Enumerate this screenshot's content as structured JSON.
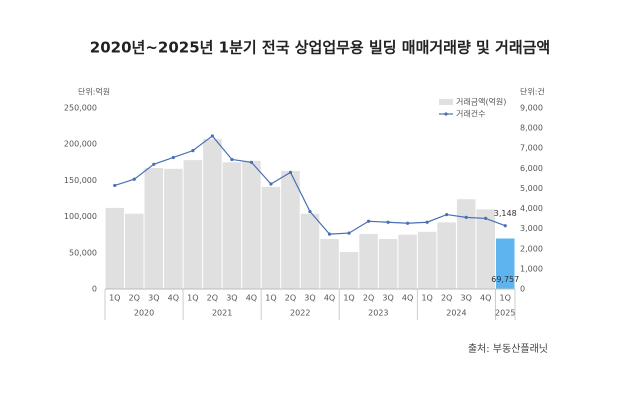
{
  "chart_data": {
    "type": "bar_line",
    "title": "2020년~2025년 1분기 전국 상업업무용 빌딩 매매거래량 및 거래금액",
    "y_unit": "단위:억원",
    "y2_unit": "단위:건",
    "source": "출처: 부동산플래닛",
    "categories": [
      {
        "quarter": "1Q",
        "year": "2020"
      },
      {
        "quarter": "2Q",
        "year": "2020"
      },
      {
        "quarter": "3Q",
        "year": "2020"
      },
      {
        "quarter": "4Q",
        "year": "2020"
      },
      {
        "quarter": "1Q",
        "year": "2021"
      },
      {
        "quarter": "2Q",
        "year": "2021"
      },
      {
        "quarter": "3Q",
        "year": "2021"
      },
      {
        "quarter": "4Q",
        "year": "2021"
      },
      {
        "quarter": "1Q",
        "year": "2022"
      },
      {
        "quarter": "2Q",
        "year": "2022"
      },
      {
        "quarter": "3Q",
        "year": "2022"
      },
      {
        "quarter": "4Q",
        "year": "2022"
      },
      {
        "quarter": "1Q",
        "year": "2023"
      },
      {
        "quarter": "2Q",
        "year": "2023"
      },
      {
        "quarter": "3Q",
        "year": "2023"
      },
      {
        "quarter": "4Q",
        "year": "2023"
      },
      {
        "quarter": "1Q",
        "year": "2024"
      },
      {
        "quarter": "2Q",
        "year": "2024"
      },
      {
        "quarter": "3Q",
        "year": "2024"
      },
      {
        "quarter": "4Q",
        "year": "2024"
      },
      {
        "quarter": "1Q",
        "year": "2025"
      }
    ],
    "series": [
      {
        "name": "거래금액(억원)",
        "type": "bar",
        "color": "#e0e0e0",
        "highlight_color": "#5db4ee",
        "values": [
          112000,
          104000,
          167000,
          166000,
          178000,
          207000,
          175000,
          177000,
          141000,
          163000,
          104000,
          69000,
          51000,
          76000,
          69000,
          75000,
          79000,
          92000,
          124000,
          110000,
          69757
        ],
        "value_labels": [
          null,
          null,
          null,
          null,
          null,
          null,
          null,
          null,
          null,
          null,
          null,
          null,
          null,
          null,
          null,
          null,
          null,
          null,
          null,
          null,
          "69,757"
        ]
      },
      {
        "name": "거래건수",
        "type": "line",
        "axis": "y2",
        "color": "#4a6fb5",
        "values": [
          5150,
          5460,
          6200,
          6540,
          6880,
          7610,
          6440,
          6300,
          5220,
          5800,
          3850,
          2730,
          2780,
          3370,
          3320,
          3270,
          3320,
          3700,
          3560,
          3510,
          3148
        ],
        "value_labels": [
          null,
          null,
          null,
          null,
          null,
          null,
          null,
          null,
          null,
          null,
          null,
          null,
          null,
          null,
          null,
          null,
          null,
          null,
          null,
          null,
          "3,148"
        ]
      }
    ],
    "ylim": [
      0,
      250000
    ],
    "yticks": [
      0,
      {
        "value": 50000,
        "label": "50,000"
      },
      {
        "value": 100000,
        "label": "100,000"
      },
      {
        "value": 150000,
        "label": "150,000"
      },
      {
        "value": 200000,
        "label": "200,000"
      },
      {
        "value": 250000,
        "label": "250,000"
      }
    ],
    "y2lim": [
      0,
      9000
    ],
    "y2ticks": [
      0,
      {
        "value": 1000,
        "label": "1,000"
      },
      {
        "value": 2000,
        "label": "2,000"
      },
      {
        "value": 3000,
        "label": "3,000"
      },
      {
        "value": 4000,
        "label": "4,000"
      },
      {
        "value": 5000,
        "label": "5,000"
      },
      {
        "value": 6000,
        "label": "6,000"
      },
      {
        "value": 7000,
        "label": "7,000"
      },
      {
        "value": 8000,
        "label": "8,000"
      },
      {
        "value": 9000,
        "label": "9,000"
      }
    ],
    "legend": "top-right",
    "grid": false
  }
}
